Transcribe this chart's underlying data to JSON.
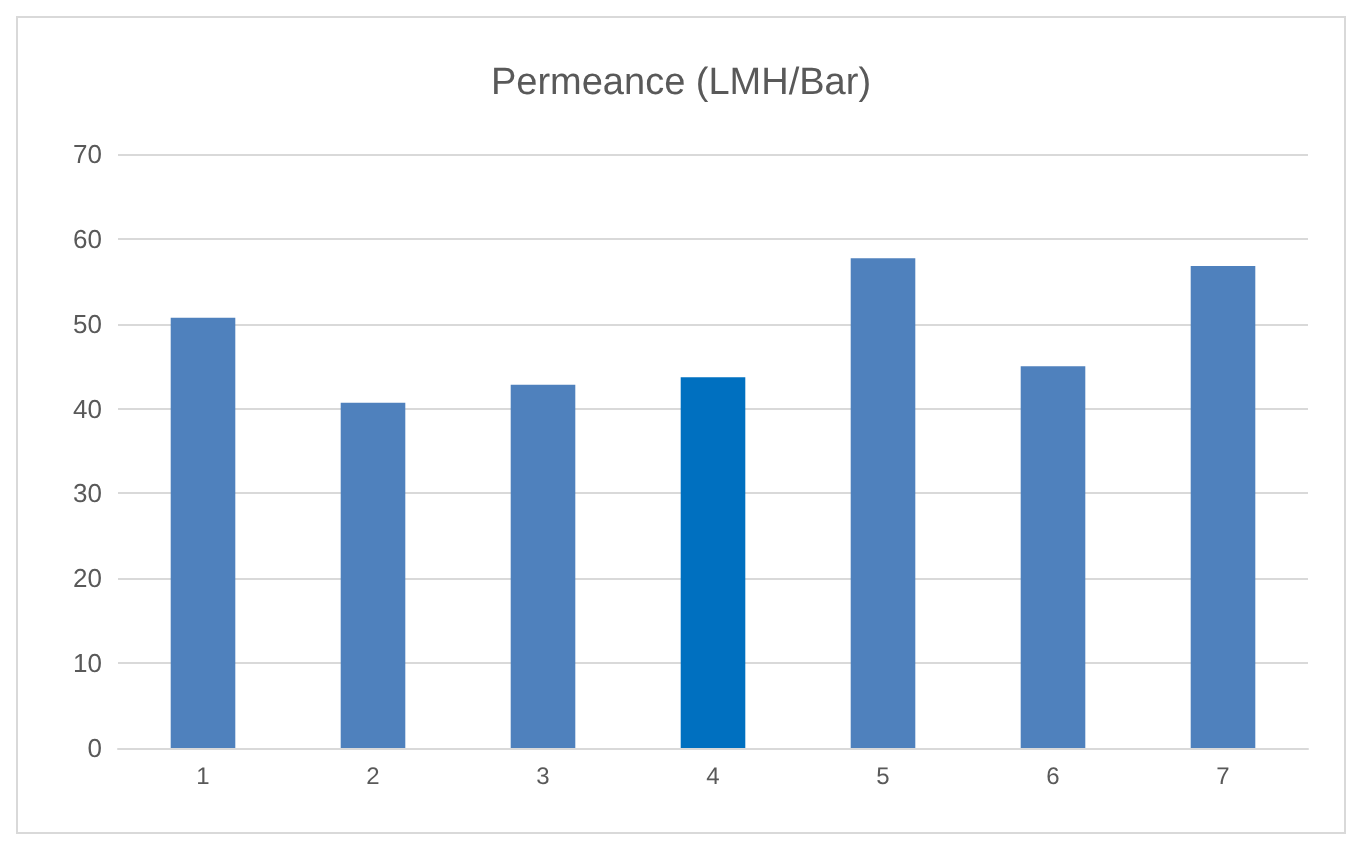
{
  "chart_data": {
    "type": "bar",
    "title": "Permeance (LMH/Bar)",
    "categories": [
      "1",
      "2",
      "3",
      "4",
      "5",
      "6",
      "7"
    ],
    "values": [
      50.7,
      40.7,
      42.8,
      43.7,
      57.7,
      45.0,
      56.8
    ],
    "colors": [
      "#4f81bd",
      "#4f81bd",
      "#4f81bd",
      "#0070c0",
      "#4f81bd",
      "#4f81bd",
      "#4f81bd"
    ],
    "ylim": [
      0,
      70
    ],
    "yticks": [
      0,
      10,
      20,
      30,
      40,
      50,
      60,
      70
    ],
    "grid": true
  }
}
